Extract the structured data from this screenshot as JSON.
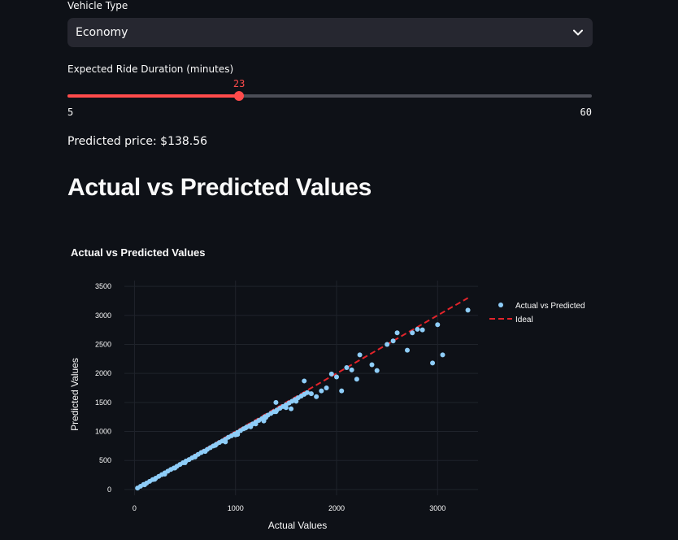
{
  "vehicle": {
    "label": "Vehicle Type",
    "value": "Economy"
  },
  "duration": {
    "label": "Expected Ride Duration (minutes)",
    "value": 23,
    "min": 5,
    "max": 60,
    "min_label": "5",
    "max_label": "60",
    "value_label": "23"
  },
  "prediction": "Predicted price: $138.56",
  "section_title": "Actual vs Predicted Values",
  "colors": {
    "accent": "#ff4b4b",
    "points": "#8ecdf8",
    "ideal": "#e3242b",
    "background": "#0e1117"
  },
  "chart_data": {
    "type": "scatter",
    "title": "Actual vs Predicted Values",
    "xlabel": "Actual Values",
    "ylabel": "Predicted Values",
    "xlim": [
      -100,
      3400
    ],
    "ylim": [
      -100,
      3600
    ],
    "xticks": [
      0,
      1000,
      2000,
      3000
    ],
    "yticks": [
      0,
      500,
      1000,
      1500,
      2000,
      2500,
      3000,
      3500
    ],
    "grid": true,
    "legend": "top-right",
    "series": [
      {
        "name": "Actual vs Predicted",
        "mode": "markers",
        "x": [
          30,
          60,
          90,
          120,
          150,
          180,
          210,
          240,
          270,
          300,
          330,
          360,
          390,
          420,
          450,
          480,
          510,
          540,
          570,
          600,
          630,
          660,
          690,
          720,
          750,
          780,
          810,
          840,
          870,
          900,
          930,
          960,
          990,
          1020,
          1050,
          1080,
          1110,
          1140,
          1170,
          1200,
          1230,
          1260,
          1290,
          1320,
          1350,
          1380,
          1410,
          1440,
          1470,
          1500,
          1530,
          1560,
          1590,
          1620,
          1650,
          1680,
          1710,
          100,
          200,
          300,
          400,
          500,
          600,
          700,
          800,
          900,
          1000,
          1100,
          1200,
          1300,
          1400,
          1500,
          1600,
          1680,
          1750,
          1800,
          1850,
          1900,
          1950,
          2000,
          2050,
          2100,
          2150,
          2200,
          2230,
          2350,
          2400,
          2500,
          2560,
          2600,
          2700,
          2750,
          2800,
          2850,
          2950,
          3000,
          3050,
          3300,
          1550,
          1400,
          1280,
          1150,
          1020,
          900
        ],
        "y": [
          25,
          55,
          85,
          110,
          140,
          170,
          195,
          225,
          255,
          285,
          315,
          345,
          370,
          400,
          430,
          460,
          490,
          515,
          545,
          575,
          605,
          635,
          660,
          690,
          720,
          750,
          780,
          810,
          835,
          865,
          900,
          925,
          955,
          985,
          1015,
          1045,
          1075,
          1100,
          1130,
          1160,
          1190,
          1220,
          1255,
          1280,
          1310,
          1340,
          1370,
          1400,
          1430,
          1460,
          1490,
          1520,
          1550,
          1580,
          1610,
          1640,
          1670,
          80,
          175,
          265,
          370,
          460,
          560,
          655,
          760,
          860,
          940,
          1060,
          1130,
          1240,
          1340,
          1410,
          1520,
          1870,
          1650,
          1600,
          1700,
          1750,
          1990,
          1940,
          1700,
          2100,
          2060,
          1900,
          2320,
          2150,
          2050,
          2500,
          2560,
          2700,
          2400,
          2700,
          2760,
          2750,
          2180,
          2840,
          2320,
          3090,
          1390,
          1500,
          1180,
          1080,
          950,
          820
        ]
      },
      {
        "name": "Ideal",
        "mode": "lines",
        "x": [
          30,
          3300
        ],
        "y": [
          30,
          3300
        ]
      }
    ]
  }
}
